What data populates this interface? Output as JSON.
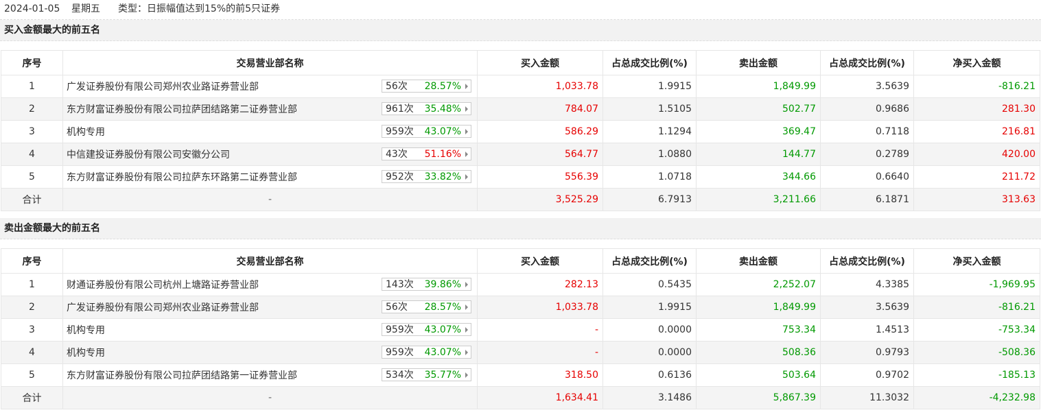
{
  "header": {
    "date": "2024-01-05",
    "weekday": "星期五",
    "type_text": "类型：日振幅值达到15%的前5只证券"
  },
  "columns": [
    "序号",
    "交易营业部名称",
    "买入金额",
    "占总成交比例(%)",
    "卖出金额",
    "占总成交比例(%)",
    "净买入金额"
  ],
  "buy_section": {
    "title": "买入金额最大的前五名",
    "rows": [
      {
        "idx": "1",
        "name": "广发证券股份有限公司郑州农业路证券营业部",
        "count": "56次",
        "pct": "28.57%",
        "pct_color": "green",
        "buy": "1,033.78",
        "buy_ratio": "1.9915",
        "sell": "1,849.99",
        "sell_ratio": "3.5639",
        "net": "-816.21",
        "net_color": "green"
      },
      {
        "idx": "2",
        "name": "东方财富证券股份有限公司拉萨团结路第二证券营业部",
        "count": "961次",
        "pct": "35.48%",
        "pct_color": "green",
        "buy": "784.07",
        "buy_ratio": "1.5105",
        "sell": "502.77",
        "sell_ratio": "0.9686",
        "net": "281.30",
        "net_color": "red"
      },
      {
        "idx": "3",
        "name": "机构专用",
        "count": "959次",
        "pct": "43.07%",
        "pct_color": "green",
        "buy": "586.29",
        "buy_ratio": "1.1294",
        "sell": "369.47",
        "sell_ratio": "0.7118",
        "net": "216.81",
        "net_color": "red"
      },
      {
        "idx": "4",
        "name": "中信建投证券股份有限公司安徽分公司",
        "count": "43次",
        "pct": "51.16%",
        "pct_color": "red",
        "buy": "564.77",
        "buy_ratio": "1.0880",
        "sell": "144.77",
        "sell_ratio": "0.2789",
        "net": "420.00",
        "net_color": "red"
      },
      {
        "idx": "5",
        "name": "东方财富证券股份有限公司拉萨东环路第二证券营业部",
        "count": "952次",
        "pct": "33.82%",
        "pct_color": "green",
        "buy": "556.39",
        "buy_ratio": "1.0718",
        "sell": "344.66",
        "sell_ratio": "0.6640",
        "net": "211.72",
        "net_color": "red"
      }
    ],
    "total": {
      "label": "合计",
      "name": "-",
      "buy": "3,525.29",
      "buy_ratio": "6.7913",
      "sell": "3,211.66",
      "sell_ratio": "6.1871",
      "net": "313.63",
      "net_color": "red"
    }
  },
  "sell_section": {
    "title": "卖出金额最大的前五名",
    "rows": [
      {
        "idx": "1",
        "name": "财通证券股份有限公司杭州上塘路证券营业部",
        "count": "143次",
        "pct": "39.86%",
        "pct_color": "green",
        "buy": "282.13",
        "buy_ratio": "0.5435",
        "sell": "2,252.07",
        "sell_ratio": "4.3385",
        "net": "-1,969.95",
        "net_color": "green"
      },
      {
        "idx": "2",
        "name": "广发证券股份有限公司郑州农业路证券营业部",
        "count": "56次",
        "pct": "28.57%",
        "pct_color": "green",
        "buy": "1,033.78",
        "buy_ratio": "1.9915",
        "sell": "1,849.99",
        "sell_ratio": "3.5639",
        "net": "-816.21",
        "net_color": "green"
      },
      {
        "idx": "3",
        "name": "机构专用",
        "count": "959次",
        "pct": "43.07%",
        "pct_color": "green",
        "buy": "-",
        "buy_ratio": "0.0000",
        "sell": "753.34",
        "sell_ratio": "1.4513",
        "net": "-753.34",
        "net_color": "green"
      },
      {
        "idx": "4",
        "name": "机构专用",
        "count": "959次",
        "pct": "43.07%",
        "pct_color": "green",
        "buy": "-",
        "buy_ratio": "0.0000",
        "sell": "508.36",
        "sell_ratio": "0.9793",
        "net": "-508.36",
        "net_color": "green"
      },
      {
        "idx": "5",
        "name": "东方财富证券股份有限公司拉萨团结路第一证券营业部",
        "count": "534次",
        "pct": "35.77%",
        "pct_color": "green",
        "buy": "318.50",
        "buy_ratio": "0.6136",
        "sell": "503.64",
        "sell_ratio": "0.9702",
        "net": "-185.13",
        "net_color": "green"
      }
    ],
    "total": {
      "label": "合计",
      "name": "-",
      "buy": "1,634.41",
      "buy_ratio": "3.1486",
      "sell": "5,867.39",
      "sell_ratio": "11.3032",
      "net": "-4,232.98",
      "net_color": "green"
    }
  },
  "colors": {
    "up": "#e60000",
    "down": "#009900",
    "header_bg": "#f2f2f2",
    "row_alt_bg": "#f4f4f4"
  }
}
